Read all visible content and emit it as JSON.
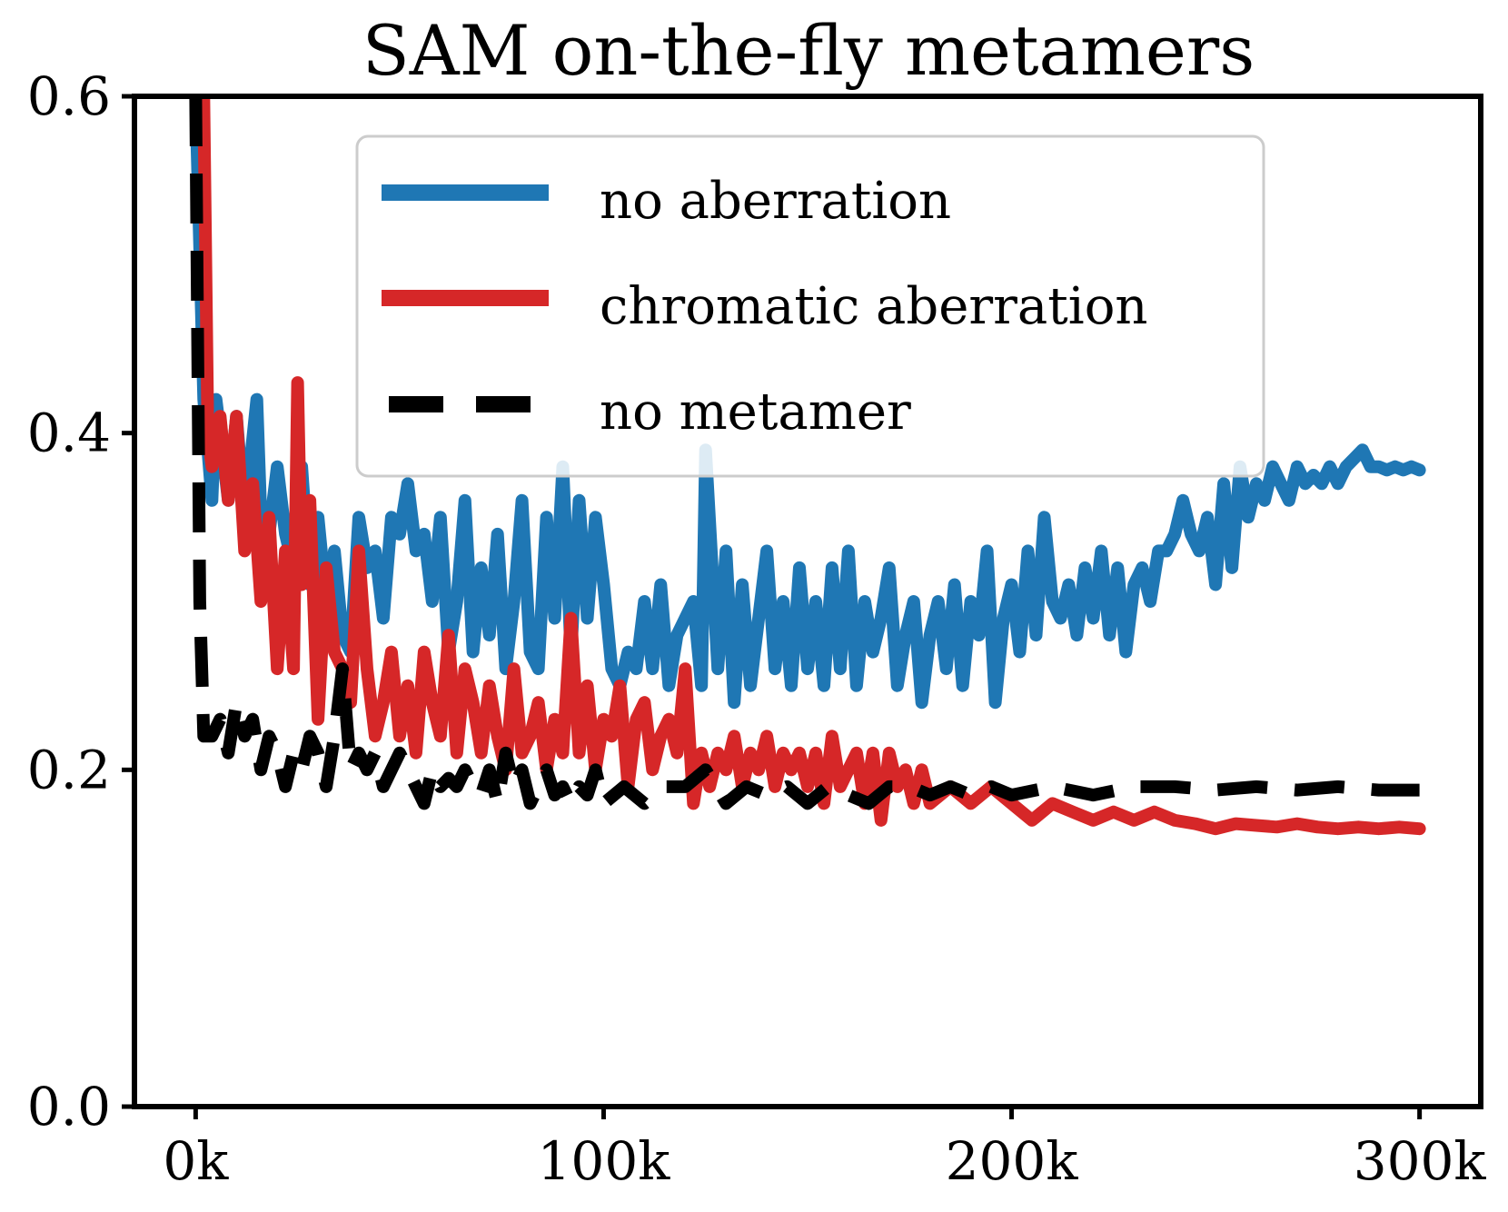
{
  "chart_data": {
    "type": "line",
    "title": "SAM on-the-fly metamers",
    "xlabel": "",
    "ylabel": "",
    "xlim": [
      -15000,
      315000
    ],
    "ylim": [
      0.0,
      0.6
    ],
    "x_ticks": [
      0,
      100000,
      200000,
      300000
    ],
    "x_tick_labels": [
      "0k",
      "100k",
      "200k",
      "300k"
    ],
    "y_ticks": [
      0.0,
      0.2,
      0.4,
      0.6
    ],
    "y_tick_labels": [
      "0.0",
      "0.2",
      "0.4",
      "0.6"
    ],
    "grid": false,
    "legend_position": "top-center",
    "series": [
      {
        "name": "no aberration",
        "color": "#1f77b4",
        "style": "solid",
        "x": [
          0,
          2000,
          4000,
          5000,
          8000,
          10000,
          12000,
          15000,
          16000,
          18000,
          20000,
          22000,
          24000,
          26000,
          28000,
          30000,
          32000,
          34000,
          36000,
          38000,
          40000,
          42000,
          44000,
          46000,
          48000,
          50000,
          52000,
          54000,
          56000,
          58000,
          60000,
          62000,
          64000,
          66000,
          68000,
          70000,
          72000,
          74000,
          76000,
          78000,
          80000,
          82000,
          84000,
          86000,
          88000,
          90000,
          92000,
          94000,
          96000,
          98000,
          100000,
          102000,
          104000,
          106000,
          108000,
          110000,
          112000,
          114000,
          116000,
          118000,
          120000,
          122000,
          124000,
          125000,
          128000,
          130000,
          132000,
          134000,
          136000,
          138000,
          140000,
          142000,
          144000,
          146000,
          148000,
          150000,
          152000,
          154000,
          156000,
          158000,
          160000,
          162000,
          164000,
          166000,
          168000,
          170000,
          172000,
          174000,
          176000,
          178000,
          180000,
          182000,
          184000,
          186000,
          188000,
          190000,
          192000,
          194000,
          196000,
          198000,
          200000,
          202000,
          204000,
          206000,
          208000,
          210000,
          212000,
          214000,
          216000,
          218000,
          220000,
          222000,
          224000,
          226000,
          228000,
          230000,
          232000,
          234000,
          236000,
          238000,
          240000,
          242000,
          244000,
          246000,
          248000,
          250000,
          252000,
          254000,
          256000,
          258000,
          260000,
          262000,
          264000,
          266000,
          268000,
          270000,
          272000,
          274000,
          276000,
          278000,
          280000,
          282000,
          284000,
          286000,
          288000,
          290000,
          292000,
          294000,
          296000,
          298000,
          300000
        ],
        "y": [
          0.6,
          0.42,
          0.36,
          0.42,
          0.36,
          0.41,
          0.35,
          0.42,
          0.35,
          0.34,
          0.38,
          0.34,
          0.32,
          0.38,
          0.31,
          0.35,
          0.3,
          0.33,
          0.28,
          0.27,
          0.35,
          0.32,
          0.33,
          0.29,
          0.35,
          0.34,
          0.37,
          0.33,
          0.34,
          0.3,
          0.35,
          0.27,
          0.3,
          0.36,
          0.27,
          0.32,
          0.28,
          0.34,
          0.26,
          0.3,
          0.36,
          0.27,
          0.26,
          0.35,
          0.29,
          0.38,
          0.27,
          0.36,
          0.29,
          0.35,
          0.31,
          0.26,
          0.25,
          0.27,
          0.26,
          0.3,
          0.26,
          0.31,
          0.25,
          0.28,
          0.29,
          0.3,
          0.25,
          0.39,
          0.26,
          0.33,
          0.24,
          0.31,
          0.25,
          0.29,
          0.33,
          0.26,
          0.3,
          0.25,
          0.32,
          0.26,
          0.3,
          0.25,
          0.32,
          0.26,
          0.33,
          0.25,
          0.3,
          0.27,
          0.29,
          0.32,
          0.25,
          0.28,
          0.3,
          0.24,
          0.28,
          0.3,
          0.26,
          0.31,
          0.25,
          0.3,
          0.28,
          0.33,
          0.24,
          0.29,
          0.31,
          0.27,
          0.33,
          0.28,
          0.35,
          0.3,
          0.29,
          0.31,
          0.28,
          0.32,
          0.29,
          0.33,
          0.28,
          0.32,
          0.27,
          0.31,
          0.32,
          0.3,
          0.33,
          0.33,
          0.34,
          0.36,
          0.34,
          0.33,
          0.35,
          0.31,
          0.37,
          0.32,
          0.38,
          0.35,
          0.37,
          0.36,
          0.38,
          0.37,
          0.36,
          0.38,
          0.37,
          0.375,
          0.37,
          0.38,
          0.37,
          0.38,
          0.385,
          0.39,
          0.38,
          0.38,
          0.378,
          0.38,
          0.378,
          0.38,
          0.378
        ]
      },
      {
        "name": "chromatic aberration",
        "color": "#d62728",
        "style": "solid",
        "x": [
          2000,
          3000,
          4000,
          6000,
          8000,
          10000,
          12000,
          14000,
          16000,
          18000,
          20000,
          22000,
          24000,
          25000,
          26000,
          28000,
          30000,
          32000,
          34000,
          36000,
          38000,
          40000,
          42000,
          44000,
          46000,
          48000,
          50000,
          52000,
          54000,
          56000,
          58000,
          60000,
          62000,
          64000,
          66000,
          68000,
          70000,
          72000,
          74000,
          76000,
          78000,
          80000,
          82000,
          84000,
          86000,
          88000,
          90000,
          92000,
          94000,
          96000,
          98000,
          100000,
          102000,
          104000,
          106000,
          108000,
          110000,
          112000,
          114000,
          116000,
          118000,
          120000,
          122000,
          124000,
          126000,
          128000,
          130000,
          132000,
          134000,
          136000,
          138000,
          140000,
          142000,
          144000,
          146000,
          148000,
          150000,
          152000,
          154000,
          156000,
          158000,
          160000,
          162000,
          164000,
          166000,
          168000,
          170000,
          172000,
          174000,
          176000,
          178000,
          180000,
          185000,
          190000,
          195000,
          200000,
          205000,
          210000,
          215000,
          220000,
          225000,
          230000,
          235000,
          240000,
          245000,
          250000,
          255000,
          260000,
          265000,
          270000,
          275000,
          280000,
          285000,
          290000,
          295000,
          300000
        ],
        "y": [
          0.6,
          0.4,
          0.38,
          0.41,
          0.36,
          0.41,
          0.33,
          0.37,
          0.3,
          0.35,
          0.26,
          0.33,
          0.26,
          0.43,
          0.31,
          0.36,
          0.23,
          0.32,
          0.27,
          0.26,
          0.24,
          0.33,
          0.26,
          0.22,
          0.24,
          0.27,
          0.22,
          0.25,
          0.21,
          0.27,
          0.24,
          0.22,
          0.28,
          0.21,
          0.26,
          0.24,
          0.21,
          0.25,
          0.22,
          0.2,
          0.26,
          0.21,
          0.22,
          0.24,
          0.2,
          0.23,
          0.21,
          0.29,
          0.21,
          0.25,
          0.2,
          0.23,
          0.22,
          0.25,
          0.19,
          0.23,
          0.24,
          0.2,
          0.22,
          0.23,
          0.21,
          0.26,
          0.18,
          0.21,
          0.19,
          0.21,
          0.2,
          0.22,
          0.19,
          0.21,
          0.2,
          0.22,
          0.19,
          0.21,
          0.2,
          0.21,
          0.19,
          0.21,
          0.18,
          0.22,
          0.19,
          0.2,
          0.21,
          0.18,
          0.21,
          0.17,
          0.21,
          0.19,
          0.2,
          0.18,
          0.2,
          0.18,
          0.19,
          0.18,
          0.19,
          0.18,
          0.17,
          0.18,
          0.175,
          0.17,
          0.175,
          0.17,
          0.175,
          0.17,
          0.168,
          0.165,
          0.168,
          0.167,
          0.166,
          0.168,
          0.166,
          0.165,
          0.166,
          0.165,
          0.166,
          0.165
        ]
      },
      {
        "name": "no metamer",
        "color": "#000000",
        "style": "dashed",
        "x": [
          0,
          1000,
          2000,
          4000,
          6000,
          8000,
          10000,
          12000,
          14000,
          16000,
          18000,
          20000,
          22000,
          24000,
          26000,
          28000,
          30000,
          32000,
          34000,
          36000,
          38000,
          40000,
          42000,
          44000,
          46000,
          48000,
          50000,
          52000,
          54000,
          56000,
          58000,
          60000,
          62000,
          64000,
          66000,
          68000,
          70000,
          72000,
          74000,
          76000,
          78000,
          80000,
          82000,
          84000,
          86000,
          88000,
          90000,
          92000,
          94000,
          96000,
          98000,
          100000,
          105000,
          110000,
          115000,
          120000,
          125000,
          130000,
          135000,
          140000,
          145000,
          150000,
          155000,
          160000,
          165000,
          170000,
          175000,
          180000,
          185000,
          190000,
          195000,
          200000,
          210000,
          220000,
          230000,
          240000,
          250000,
          260000,
          270000,
          280000,
          290000,
          300000
        ],
        "y": [
          0.6,
          0.3,
          0.22,
          0.22,
          0.23,
          0.21,
          0.24,
          0.22,
          0.23,
          0.2,
          0.22,
          0.21,
          0.19,
          0.21,
          0.2,
          0.22,
          0.21,
          0.19,
          0.22,
          0.26,
          0.2,
          0.21,
          0.2,
          0.21,
          0.19,
          0.2,
          0.21,
          0.2,
          0.19,
          0.18,
          0.2,
          0.19,
          0.195,
          0.19,
          0.2,
          0.19,
          0.185,
          0.2,
          0.18,
          0.21,
          0.19,
          0.2,
          0.18,
          0.19,
          0.2,
          0.185,
          0.19,
          0.18,
          0.19,
          0.185,
          0.2,
          0.18,
          0.19,
          0.18,
          0.19,
          0.19,
          0.2,
          0.18,
          0.19,
          0.185,
          0.19,
          0.18,
          0.19,
          0.185,
          0.18,
          0.19,
          0.19,
          0.185,
          0.19,
          0.185,
          0.19,
          0.185,
          0.19,
          0.185,
          0.19,
          0.19,
          0.188,
          0.19,
          0.188,
          0.19,
          0.188,
          0.188
        ]
      }
    ]
  }
}
